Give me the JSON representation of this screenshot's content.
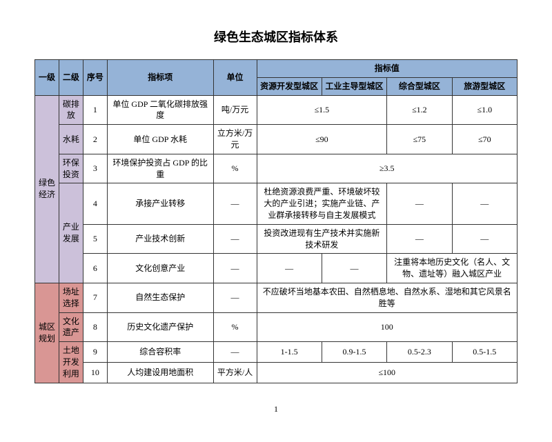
{
  "title": "绿色生态城区指标体系",
  "page_number": "1",
  "headers": {
    "lv1": "一级",
    "lv2": "二级",
    "seq": "序号",
    "item": "指标项",
    "unit": "单位",
    "value_group": "指标值",
    "val1": "资源开发型城区",
    "val2": "工业主导型城区",
    "val3": "综合型城区",
    "val4": "旅游型城区"
  },
  "rows": {
    "r1": {
      "lv1": "绿色经济",
      "lv2": "碳排放",
      "seq": "1",
      "item": "单位 GDP 二氧化碳排放强度",
      "unit": "吨/万元",
      "v12": "≤1.5",
      "v3": "≤1.2",
      "v4": "≤1.0"
    },
    "r2": {
      "lv2": "水耗",
      "seq": "2",
      "item": "单位 GDP 水耗",
      "unit": "立方米/万元",
      "v12": "≤90",
      "v3": "≤75",
      "v4": "≤70"
    },
    "r3": {
      "lv2": "环保投资",
      "seq": "3",
      "item": "环境保护投资占 GDP 的比重",
      "unit": "%",
      "vall": "≥3.5"
    },
    "r4": {
      "lv2": "产业发展",
      "seq": "4",
      "item": "承接产业转移",
      "unit": "—",
      "v12": "杜绝资源浪费严重、环境破坏较大的产业引进；实施产业链、产业群承接转移与自主发展模式",
      "v3": "—",
      "v4": "—"
    },
    "r5": {
      "seq": "5",
      "item": "产业技术创新",
      "unit": "—",
      "v12": "投资改进现有生产技术并实施新技术研发",
      "v3": "—",
      "v4": "—"
    },
    "r6": {
      "seq": "6",
      "item": "文化创意产业",
      "unit": "—",
      "v1": "—",
      "v2": "—",
      "v34": "注重将本地历史文化（名人、文物、遗址等）融入城区产业"
    },
    "r7": {
      "lv1": "城区规划",
      "lv2": "场址选择",
      "seq": "7",
      "item": "自然生态保护",
      "unit": "—",
      "vall": "不应破坏当地基本农田、自然栖息地、自然水系、湿地和其它风景名胜等"
    },
    "r8": {
      "lv2": "文化遗产",
      "seq": "8",
      "item": "历史文化遗产保护",
      "unit": "%",
      "vall": "100"
    },
    "r9": {
      "lv2": "土地开发利用",
      "seq": "9",
      "item": "综合容积率",
      "unit": "—",
      "v1": "1-1.5",
      "v2": "0.9-1.5",
      "v3": "0.5-2.3",
      "v4": "0.5-1.5"
    },
    "r10": {
      "seq": "10",
      "item": "人均建设用地面积",
      "unit": "平方米/人",
      "vall": "≤100"
    }
  }
}
